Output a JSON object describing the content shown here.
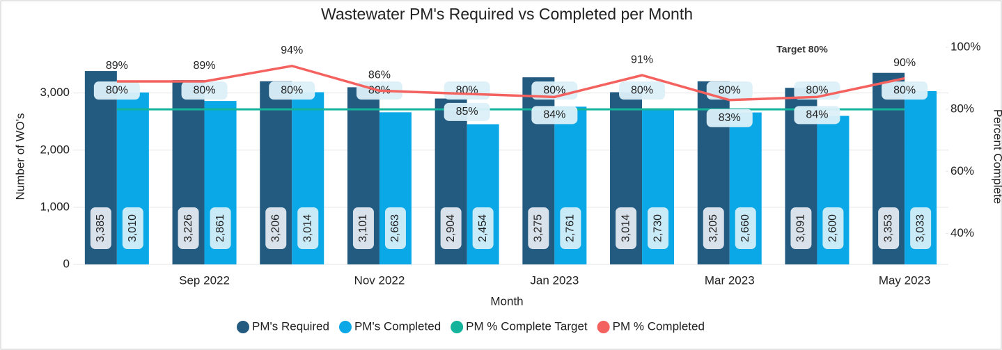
{
  "chart_data": {
    "type": "bar",
    "title": "Wastewater PM's Required vs Completed per Month",
    "x_label": "Month",
    "y_label": "Number of WO's",
    "y2_label": "Percent Complete",
    "annotation": "Target 80%",
    "categories": [
      null,
      "Sep 2022",
      null,
      "Nov 2022",
      null,
      "Jan 2023",
      null,
      "Mar 2023",
      null,
      "May 2023"
    ],
    "ylim": [
      0,
      3800
    ],
    "yticks": [
      0,
      {
        "value": 1000,
        "label": "1,000"
      },
      {
        "value": 2000,
        "label": "2,000"
      },
      {
        "value": 3000,
        "label": "3,000"
      }
    ],
    "y2lim": [
      30,
      100
    ],
    "y2ticks": [
      {
        "value": 40,
        "label": "40%"
      },
      {
        "value": 60,
        "label": "60%"
      },
      {
        "value": 80,
        "label": "80%"
      },
      {
        "value": 100,
        "label": "100%"
      }
    ],
    "grid": true,
    "legend": "bottom",
    "series": [
      {
        "name": "PM's Required",
        "type": "bar",
        "color": "#235a80",
        "values": [
          3385,
          3226,
          3206,
          3101,
          2904,
          3275,
          3014,
          3205,
          3091,
          3353
        ],
        "value_labels": [
          "3,385",
          "3,226",
          "3,206",
          "3,101",
          "2,904",
          "3,275",
          "3,014",
          "3,205",
          "3,091",
          "3,353"
        ]
      },
      {
        "name": "PM's Completed",
        "type": "bar",
        "color": "#0aa8e6",
        "values": [
          3010,
          2861,
          3014,
          2663,
          2454,
          2761,
          2730,
          2660,
          2600,
          3033
        ],
        "value_labels": [
          "3,010",
          "2,861",
          "3,014",
          "2,663",
          "2,454",
          "2,761",
          "2,730",
          "2,660",
          "2,600",
          "3,033"
        ]
      },
      {
        "name": "PM % Complete Target",
        "type": "line",
        "axis": "y2",
        "color": "#14b39b",
        "values": [
          80,
          80,
          80,
          80,
          80,
          80,
          80,
          80,
          80,
          80
        ],
        "value_labels": [
          "80%",
          "80%",
          "80%",
          "80%",
          "80%",
          "80%",
          "80%",
          "80%",
          "80%",
          "80%"
        ]
      },
      {
        "name": "PM % Completed",
        "type": "line",
        "axis": "y2",
        "color": "#f4625f",
        "values": [
          89,
          89,
          94,
          86,
          85,
          84,
          91,
          83,
          84,
          90
        ],
        "value_labels": [
          "89%",
          "89%",
          "94%",
          "86%",
          "85%",
          "84%",
          "91%",
          "83%",
          "84%",
          "90%"
        ]
      }
    ]
  }
}
